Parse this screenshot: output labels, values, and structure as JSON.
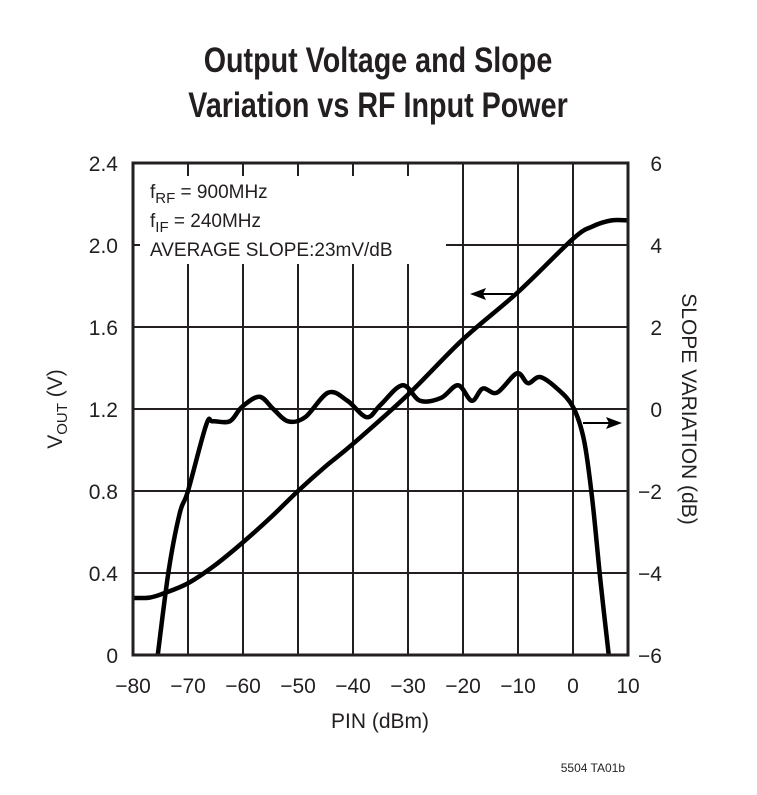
{
  "chart_data": {
    "type": "line",
    "title": [
      "Output Voltage and Slope",
      "Variation vs RF Input Power"
    ],
    "xlabel": "PIN (dBm)",
    "ylabel": {
      "main": "V",
      "sub": "OUT",
      "rest": " (V)"
    },
    "y2label": "SLOPE VARIATION (dB)",
    "xlim": [
      -80,
      10
    ],
    "ylim": [
      0,
      2.4
    ],
    "y2lim": [
      -6,
      6
    ],
    "grid": true,
    "x_ticks": [
      "−80",
      "−70",
      "−60",
      "−50",
      "−40",
      "−30",
      "−20",
      "−10",
      "0",
      "10"
    ],
    "y_ticks": [
      "0",
      "0.4",
      "0.8",
      "1.2",
      "1.6",
      "2.0",
      "2.4"
    ],
    "y2_ticks": [
      "−6",
      "−4",
      "−2",
      "0",
      "2",
      "4",
      "6"
    ],
    "annotations": [
      {
        "main": "f",
        "sub": "RF",
        "rest": " = 900MHz"
      },
      {
        "main": "f",
        "sub": "IF",
        "rest": " = 240MHz"
      },
      {
        "main": "AVERAGE SLOPE:23mV/dB",
        "sub": "",
        "rest": ""
      }
    ],
    "series": [
      {
        "axis": "left",
        "x": [
          -80,
          -77,
          -74.5,
          -70,
          -65,
          -60,
          -55,
          -50,
          -45,
          -40,
          -30,
          -20,
          -10,
          0,
          3.5,
          7,
          10
        ],
        "y": [
          0.278,
          0.28,
          0.3,
          0.35,
          0.44,
          0.55,
          0.67,
          0.8,
          0.92,
          1.03,
          1.27,
          1.54,
          1.77,
          2.03,
          2.09,
          2.12,
          2.12
        ]
      },
      {
        "axis": "right",
        "x": [
          -75.5,
          -73.5,
          -71.5,
          -70,
          -66.7,
          -65.5,
          -62.4,
          -60.2,
          -57,
          -54.5,
          -51.8,
          -48.7,
          -44.5,
          -41,
          -37.5,
          -35,
          -31,
          -27.8,
          -24,
          -20.9,
          -18.4,
          -16.4,
          -13.8,
          -10.2,
          -8.2,
          -6,
          -2.9,
          0,
          2,
          3.5,
          5,
          6.5
        ],
        "y": [
          -6,
          -3.93,
          -2.54,
          -2.0,
          -0.39,
          -0.3,
          -0.3,
          0.05,
          0.3,
          0.0,
          -0.3,
          -0.2,
          0.4,
          0.2,
          -0.2,
          0.1,
          0.58,
          0.2,
          0.27,
          0.58,
          0.2,
          0.5,
          0.4,
          0.87,
          0.63,
          0.78,
          0.5,
          0.05,
          -0.76,
          -2.2,
          -4.2,
          -6
        ]
      }
    ]
  },
  "footer": "5504 TA01b"
}
